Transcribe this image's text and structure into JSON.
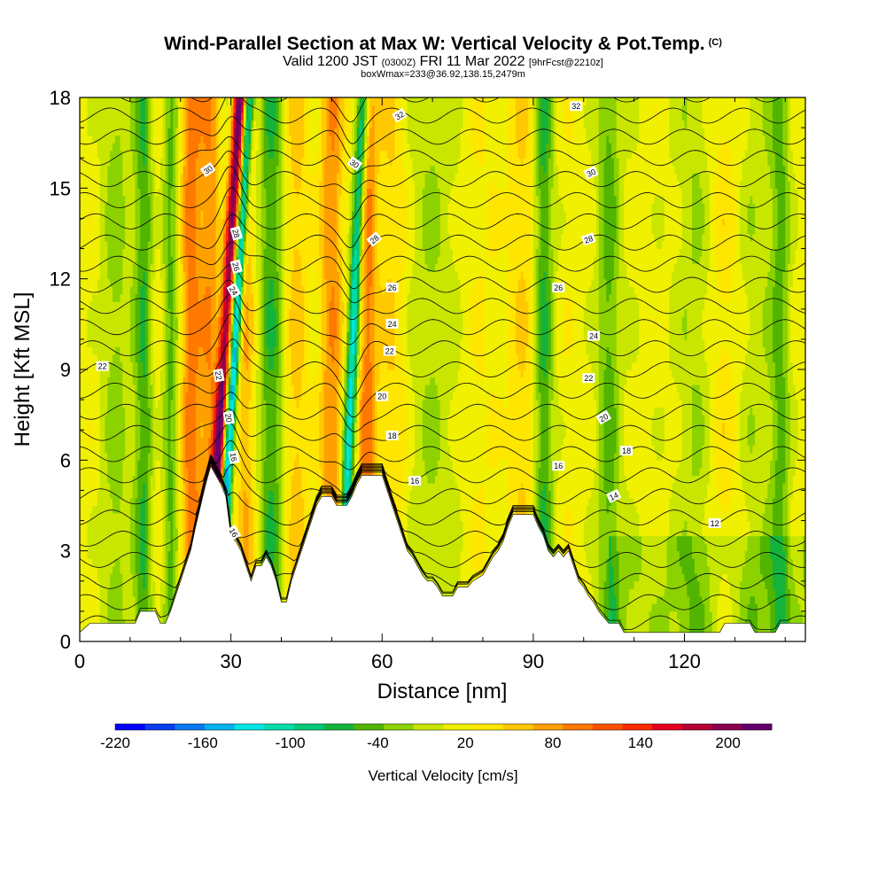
{
  "chart_data": {
    "type": "heatmap",
    "title": "Wind-Parallel Section at Max W: Vertical Velocity & Pot.Temp.",
    "title_tag": "(C)",
    "subtitle_main": "Valid 1200 JST",
    "subtitle_utc": "(0300Z)",
    "subtitle_date": "FRI 11 Mar 2022",
    "subtitle_fcst": "[9hrFcst@2210z]",
    "subtitle2": "boxWmax=233@36.92,138.15,2479m",
    "xlabel": "Distance [nm]",
    "ylabel": "Height [Kft MSL]",
    "xlim": [
      0,
      144
    ],
    "ylim": [
      0,
      18
    ],
    "x_ticks": [
      0,
      30,
      60,
      90,
      120
    ],
    "y_ticks": [
      0,
      3,
      6,
      9,
      12,
      15,
      18
    ],
    "colorbar": {
      "label": "Vertical Velocity [cm/s]",
      "tick_labels": [
        "-220",
        "-160",
        "-100",
        "-40",
        "20",
        "80",
        "140",
        "200"
      ],
      "tick_values": [
        -220,
        -160,
        -100,
        -40,
        20,
        80,
        140,
        200
      ],
      "range": [
        -220,
        230
      ],
      "colors": [
        "#0000ff",
        "#0a3cf0",
        "#0a78f0",
        "#00b4f0",
        "#00e6e6",
        "#00dcaa",
        "#00c878",
        "#14b43c",
        "#50b400",
        "#8cd200",
        "#c8e600",
        "#f0f000",
        "#ffe600",
        "#ffc800",
        "#ffa000",
        "#ff7800",
        "#ff5000",
        "#ff2800",
        "#e6001e",
        "#b40032",
        "#8c0050",
        "#64006e"
      ]
    },
    "terrain_kft": [
      [
        0,
        0.3
      ],
      [
        2,
        0.6
      ],
      [
        6,
        0.6
      ],
      [
        9,
        0.6
      ],
      [
        11,
        0.6
      ],
      [
        12,
        1.0
      ],
      [
        14,
        1.0
      ],
      [
        15,
        1.0
      ],
      [
        16,
        0.6
      ],
      [
        17,
        0.6
      ],
      [
        18,
        1.0
      ],
      [
        19,
        1.5
      ],
      [
        20,
        2.0
      ],
      [
        21,
        2.5
      ],
      [
        22,
        3.0
      ],
      [
        23,
        3.8
      ],
      [
        24,
        4.5
      ],
      [
        25,
        5.2
      ],
      [
        26,
        5.8
      ],
      [
        27,
        5.5
      ],
      [
        28,
        5.2
      ],
      [
        29,
        4.8
      ],
      [
        30,
        3.5
      ],
      [
        31,
        3.3
      ],
      [
        32,
        3.0
      ],
      [
        33,
        2.5
      ],
      [
        34,
        2.0
      ],
      [
        35,
        2.5
      ],
      [
        36,
        2.5
      ],
      [
        37,
        2.8
      ],
      [
        38,
        2.5
      ],
      [
        39,
        2.0
      ],
      [
        40,
        1.3
      ],
      [
        41,
        1.3
      ],
      [
        42,
        2.0
      ],
      [
        43,
        2.5
      ],
      [
        44,
        3.0
      ],
      [
        45,
        3.5
      ],
      [
        46,
        4.0
      ],
      [
        47,
        4.5
      ],
      [
        48,
        4.8
      ],
      [
        50,
        4.8
      ],
      [
        51,
        4.5
      ],
      [
        53,
        4.5
      ],
      [
        54,
        4.8
      ],
      [
        55,
        5.2
      ],
      [
        56,
        5.5
      ],
      [
        58,
        5.5
      ],
      [
        60,
        5.5
      ],
      [
        61,
        5.0
      ],
      [
        62,
        4.5
      ],
      [
        63,
        4.0
      ],
      [
        64,
        3.5
      ],
      [
        65,
        3.0
      ],
      [
        66,
        2.8
      ],
      [
        67,
        2.5
      ],
      [
        68,
        2.2
      ],
      [
        69,
        2.0
      ],
      [
        70,
        2.0
      ],
      [
        71,
        1.8
      ],
      [
        72,
        1.5
      ],
      [
        74,
        1.5
      ],
      [
        75,
        1.8
      ],
      [
        77,
        1.8
      ],
      [
        78,
        2.0
      ],
      [
        80,
        2.2
      ],
      [
        81,
        2.5
      ],
      [
        82,
        2.8
      ],
      [
        83,
        3.0
      ],
      [
        84,
        3.3
      ],
      [
        85,
        3.8
      ],
      [
        86,
        4.2
      ],
      [
        88,
        4.2
      ],
      [
        90,
        4.2
      ],
      [
        91,
        3.8
      ],
      [
        92,
        3.5
      ],
      [
        93,
        3.0
      ],
      [
        94,
        2.8
      ],
      [
        95,
        3.0
      ],
      [
        96,
        2.8
      ],
      [
        97,
        3.0
      ],
      [
        98,
        2.5
      ],
      [
        99,
        2.0
      ],
      [
        100,
        1.8
      ],
      [
        101,
        1.5
      ],
      [
        102,
        1.3
      ],
      [
        103,
        1.0
      ],
      [
        104,
        0.8
      ],
      [
        105,
        0.6
      ],
      [
        107,
        0.6
      ],
      [
        108,
        0.3
      ],
      [
        118,
        0.3
      ],
      [
        127,
        0.3
      ],
      [
        128,
        0.6
      ],
      [
        133,
        0.6
      ],
      [
        134,
        0.3
      ],
      [
        138,
        0.3
      ],
      [
        139,
        0.6
      ],
      [
        142,
        0.6
      ],
      [
        144,
        0.6
      ]
    ],
    "theta_contour_labels": [
      {
        "text": "32",
        "x": 63.5,
        "y": 17.4,
        "angle": -30
      },
      {
        "text": "32",
        "x": 98.5,
        "y": 17.7,
        "angle": 0
      },
      {
        "text": "30",
        "x": 25.5,
        "y": 15.6,
        "angle": -35
      },
      {
        "text": "30",
        "x": 54.5,
        "y": 15.8,
        "angle": 35
      },
      {
        "text": "30",
        "x": 101.5,
        "y": 15.5,
        "angle": -25
      },
      {
        "text": "28",
        "x": 31,
        "y": 13.5,
        "angle": 75
      },
      {
        "text": "28",
        "x": 58.5,
        "y": 13.3,
        "angle": -40
      },
      {
        "text": "28",
        "x": 101,
        "y": 13.3,
        "angle": -20
      },
      {
        "text": "26",
        "x": 31,
        "y": 12.4,
        "angle": 75
      },
      {
        "text": "26",
        "x": 62,
        "y": 11.7,
        "angle": 0
      },
      {
        "text": "26",
        "x": 95,
        "y": 11.7,
        "angle": 0
      },
      {
        "text": "24",
        "x": 30.5,
        "y": 11.6,
        "angle": 60
      },
      {
        "text": "24",
        "x": 62,
        "y": 10.5,
        "angle": 0
      },
      {
        "text": "24",
        "x": 102,
        "y": 10.1,
        "angle": 0
      },
      {
        "text": "22",
        "x": 27.5,
        "y": 8.8,
        "angle": 80
      },
      {
        "text": "22",
        "x": 61.5,
        "y": 9.6,
        "angle": 0
      },
      {
        "text": "22",
        "x": 101,
        "y": 8.7,
        "angle": 0
      },
      {
        "text": "22",
        "x": 4.5,
        "y": 9.1,
        "angle": 0
      },
      {
        "text": "20",
        "x": 29.5,
        "y": 7.4,
        "angle": 80
      },
      {
        "text": "20",
        "x": 60,
        "y": 8.1,
        "angle": 0
      },
      {
        "text": "20",
        "x": 104,
        "y": 7.4,
        "angle": -30
      },
      {
        "text": "18",
        "x": 62,
        "y": 6.8,
        "angle": 0
      },
      {
        "text": "18",
        "x": 108.5,
        "y": 6.3,
        "angle": 0
      },
      {
        "text": "16",
        "x": 30.5,
        "y": 6.1,
        "angle": 80
      },
      {
        "text": "16",
        "x": 66.5,
        "y": 5.3,
        "angle": 0
      },
      {
        "text": "16",
        "x": 95,
        "y": 5.8,
        "angle": 0
      },
      {
        "text": "16",
        "x": 30.5,
        "y": 3.6,
        "angle": 60
      },
      {
        "text": "14",
        "x": 106,
        "y": 4.8,
        "angle": -25
      },
      {
        "text": "12",
        "x": 126,
        "y": 3.9,
        "angle": 0
      }
    ]
  }
}
